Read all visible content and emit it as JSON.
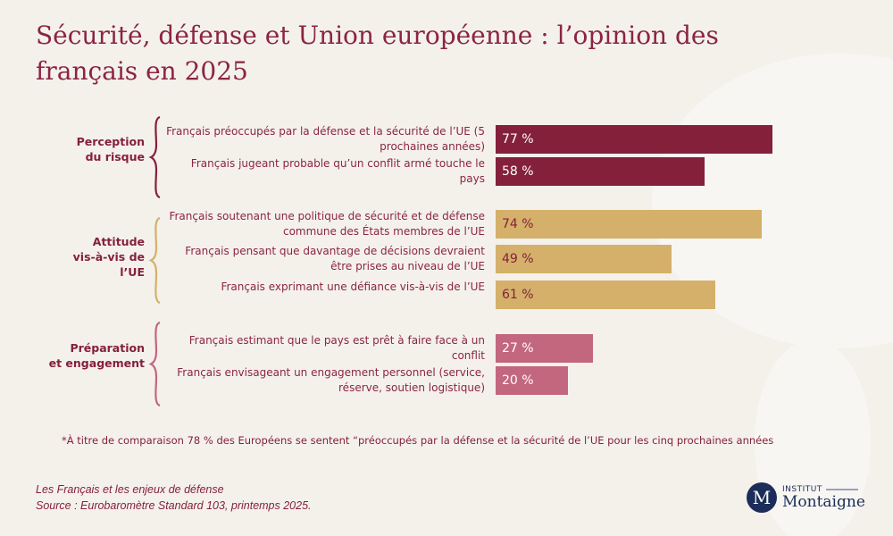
{
  "title": "Sécurité, défense et Union européenne : l’opinion des français en 2025",
  "colors": {
    "perception": "#85203a",
    "attitude": "#d4b06a",
    "preparation": "#c2677d",
    "text": "#8b2540"
  },
  "chart_data": {
    "type": "bar",
    "orientation": "horizontal",
    "groups": [
      {
        "label": "Perception\ndu risque",
        "color": "#85203a",
        "items": [
          {
            "label": "Français préoccupés par la défense  et la sécurité de l’UE (5 prochaines années)",
            "value": 77,
            "value_label": "77 %"
          },
          {
            "label": "Français jugeant probable qu’un conflit armé touche le pays",
            "value": 58,
            "value_label": "58 %"
          }
        ]
      },
      {
        "label": "Attitude\nvis-à-vis de\nl’UE",
        "color": "#d4b06a",
        "items": [
          {
            "label": "Français soutenant une politique de sécurité et de défense commune des États membres de l’UE",
            "value": 74,
            "value_label": "74 %"
          },
          {
            "label": "Français pensant que davantage de décisions devraient être prises au niveau de l’UE",
            "value": 49,
            "value_label": "49 %"
          },
          {
            "label": "Français exprimant une défiance vis-à-vis de l’UE",
            "value": 61,
            "value_label": "61 %"
          }
        ]
      },
      {
        "label": "Préparation\net engagement",
        "color": "#c2677d",
        "items": [
          {
            "label": "Français estimant que le pays est prêt à faire face à un conflit",
            "value": 27,
            "value_label": "27 %"
          },
          {
            "label": "Français envisageant un engagement personnel (service, réserve, soutien logistique)",
            "value": 20,
            "value_label": "20 %"
          }
        ]
      }
    ]
  },
  "note": "*À titre de comparaison 78 % des Européens se sentent “préoccupés par la défense et la sécurité de l’UE pour les cinq prochaines années",
  "source": {
    "line1": "Les Français et les enjeux de défense",
    "line2": "Source : Eurobaromètre Standard 103, printemps 2025."
  },
  "logo": {
    "mark": "M",
    "line1": "INSTITUT",
    "line2": "Montaigne"
  }
}
